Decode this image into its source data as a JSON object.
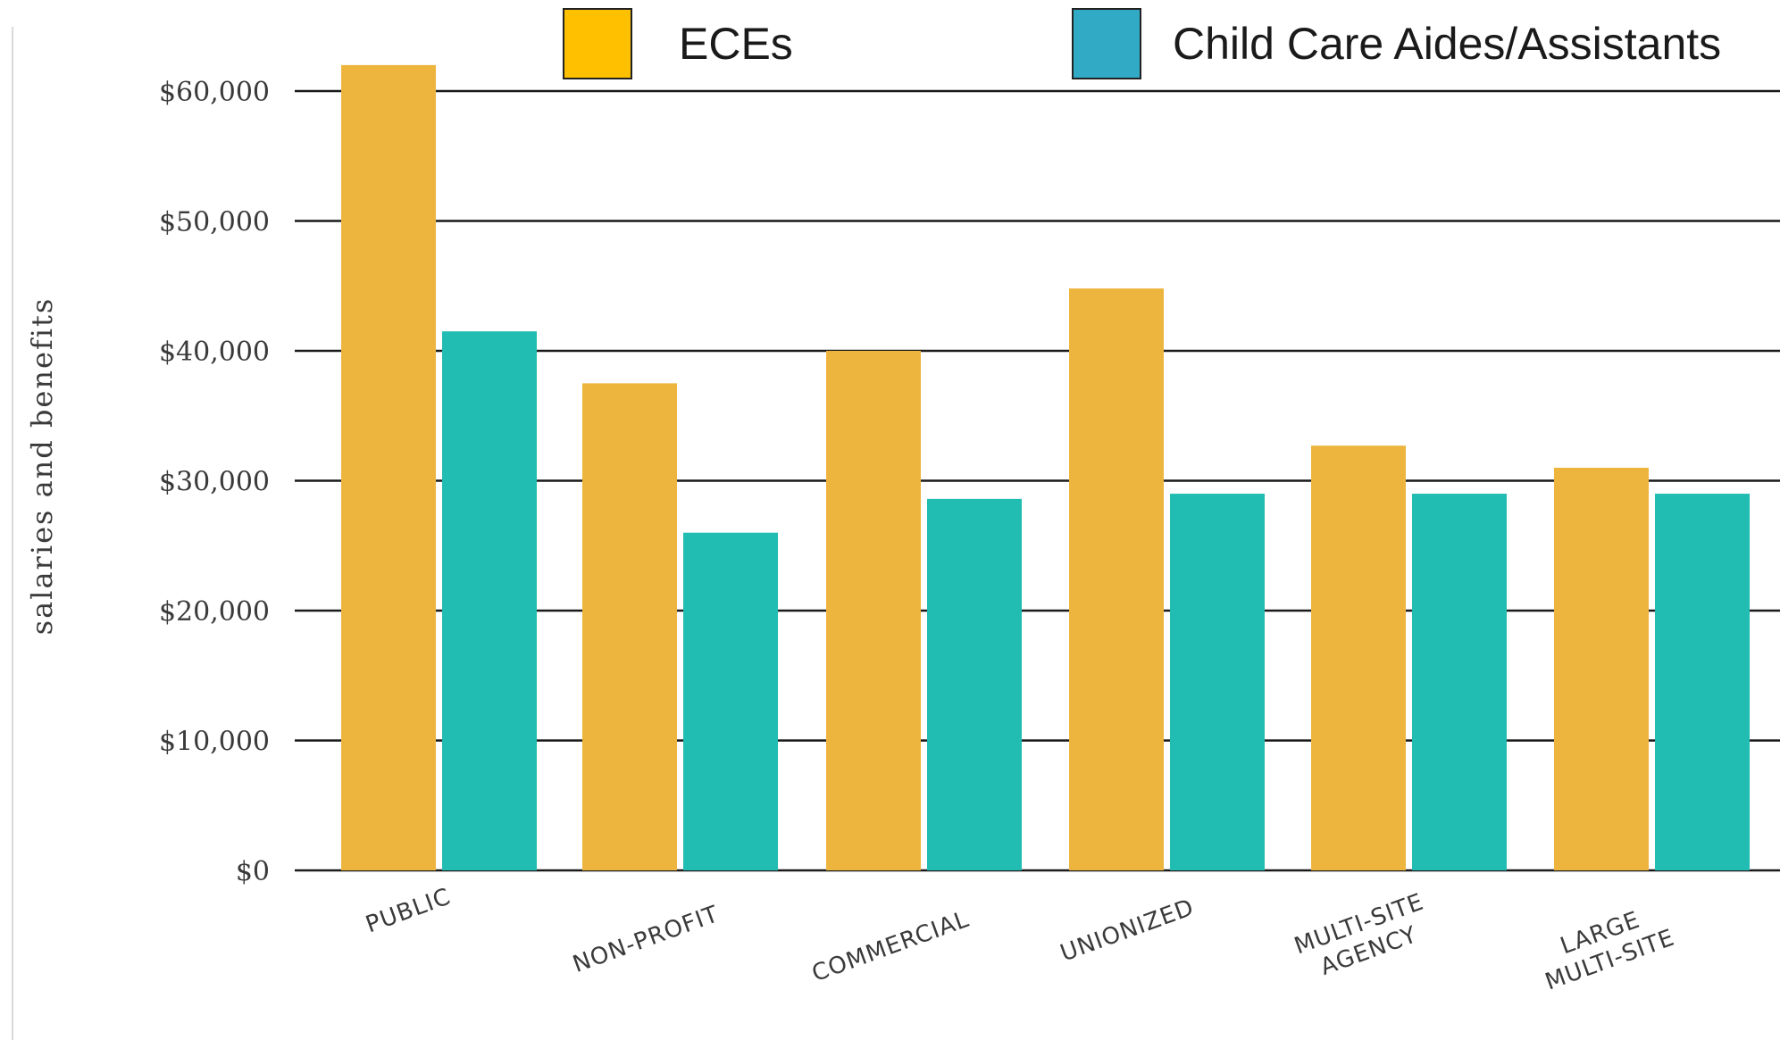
{
  "chart_data": {
    "type": "bar",
    "ylabel": "salaries and benefits",
    "xlabel": "",
    "title": "",
    "ylim": [
      0,
      60000
    ],
    "yticks": [
      0,
      10000,
      20000,
      30000,
      40000,
      50000,
      60000
    ],
    "ytick_labels": [
      "$0",
      "$10,000",
      "$20,000",
      "$30,000",
      "$40,000",
      "$50,000",
      "$60,000"
    ],
    "categories": [
      "PUBLIC",
      "NON-PROFIT",
      "COMMERCIAL",
      "UNIONIZED",
      "MULTI-SITE AGENCY",
      "LARGE MULTI-SITE"
    ],
    "category_label_lines": [
      [
        "PUBLIC"
      ],
      [
        "NON-PROFIT"
      ],
      [
        "COMMERCIAL"
      ],
      [
        "UNIONIZED"
      ],
      [
        "MULTI-SITE",
        "AGENCY"
      ],
      [
        "LARGE",
        "MULTI-SITE"
      ]
    ],
    "series": [
      {
        "name": "ECEs",
        "values": [
          62000,
          37500,
          40000,
          44800,
          32700,
          31000
        ],
        "color": "#EDB53E",
        "legend_color": "#FFC000"
      },
      {
        "name": "Child Care Aides/Assistants",
        "values": [
          41500,
          26000,
          28600,
          29000,
          29000,
          29000
        ],
        "color": "#21BCB2",
        "legend_color": "#31ABC5"
      }
    ],
    "grid": true,
    "legend_position": "top"
  }
}
